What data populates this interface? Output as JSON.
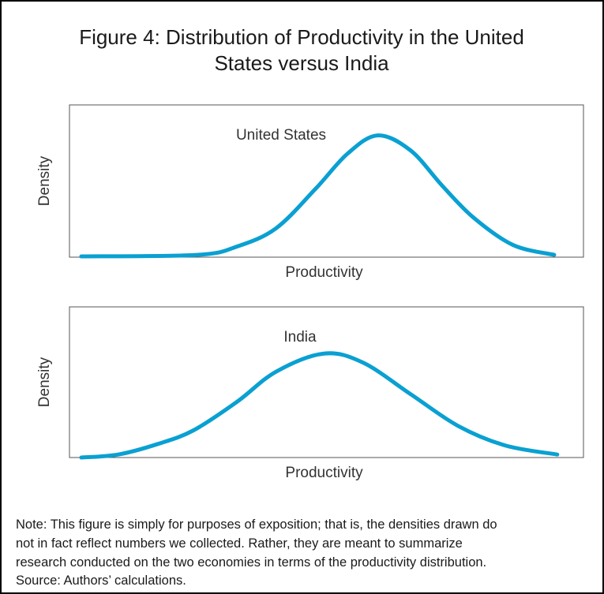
{
  "title": [
    "Figure 4: Distribution of Productivity in the United",
    "States versus India"
  ],
  "chart_data": [
    {
      "type": "line",
      "annotation": "United States",
      "xlabel": "Productivity",
      "ylabel": "Density",
      "color": "#0aa0d2",
      "xlim": [
        0,
        100
      ],
      "ylim": [
        0,
        1
      ],
      "x": [
        2.3,
        24.9,
        32.6,
        40.2,
        47.9,
        54.1,
        60.0,
        66.4,
        72.5,
        78.6,
        86.3,
        94.3
      ],
      "values": [
        0.005,
        0.015,
        0.07,
        0.19,
        0.45,
        0.68,
        0.8,
        0.7,
        0.47,
        0.26,
        0.08,
        0.015
      ]
    },
    {
      "type": "line",
      "annotation": "India",
      "xlabel": "Productivity",
      "ylabel": "Density",
      "color": "#0aa0d2",
      "xlim": [
        0,
        100
      ],
      "ylim": [
        0,
        1
      ],
      "x": [
        2.3,
        9.5,
        17.2,
        24.1,
        32.6,
        40.2,
        49.5,
        57.1,
        66.4,
        75.6,
        84.8,
        94.9
      ],
      "values": [
        0.0,
        0.02,
        0.09,
        0.18,
        0.37,
        0.57,
        0.69,
        0.63,
        0.42,
        0.21,
        0.08,
        0.02
      ]
    }
  ],
  "note": [
    "Note: This figure is simply for purposes of exposition; that is, the densities drawn do",
    "not in fact reflect numbers we collected. Rather, they are meant to summarize",
    "research conducted on the two economies in terms of the productivity distribution.",
    "Source: Authors’ calculations."
  ]
}
